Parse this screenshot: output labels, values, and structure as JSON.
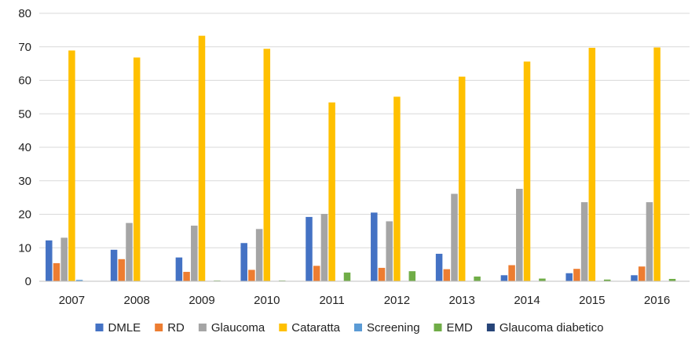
{
  "chart_data": {
    "type": "bar",
    "title": "",
    "xlabel": "",
    "ylabel": "",
    "ylim": [
      0,
      80
    ],
    "yticks": [
      0,
      10,
      20,
      30,
      40,
      50,
      60,
      70,
      80
    ],
    "grid": true,
    "legend_position": "bottom",
    "categories": [
      "2007",
      "2008",
      "2009",
      "2010",
      "2011",
      "2012",
      "2013",
      "2014",
      "2015",
      "2016"
    ],
    "series": [
      {
        "name": "DMLE",
        "color": "#4472C4",
        "values": [
          12.2,
          9.4,
          7.1,
          11.4,
          19.2,
          20.5,
          8.2,
          1.8,
          2.4,
          1.8
        ]
      },
      {
        "name": "RD",
        "color": "#ED7D31",
        "values": [
          5.4,
          6.6,
          2.8,
          3.4,
          4.6,
          4.0,
          3.6,
          4.8,
          3.7,
          4.4
        ]
      },
      {
        "name": "Glaucoma",
        "color": "#A5A5A5",
        "values": [
          13.0,
          17.4,
          16.6,
          15.6,
          20.1,
          17.9,
          26.1,
          27.6,
          23.6,
          23.6
        ]
      },
      {
        "name": "Cataratta",
        "color": "#FFC000",
        "values": [
          68.9,
          66.8,
          73.3,
          69.4,
          53.4,
          55.1,
          61.1,
          65.6,
          69.7,
          69.8
        ]
      },
      {
        "name": "Screening",
        "color": "#5B9BD5",
        "values": [
          0.4,
          0.0,
          0.0,
          0.0,
          0.0,
          0.0,
          0.0,
          0.0,
          0.0,
          0.0
        ]
      },
      {
        "name": "EMD",
        "color": "#70AD47",
        "values": [
          0.1,
          0.0,
          0.2,
          0.2,
          2.6,
          3.0,
          1.4,
          0.8,
          0.5,
          0.7
        ]
      },
      {
        "name": "Glaucoma diabetico",
        "color": "#264478",
        "values": [
          0.0,
          0.0,
          0.0,
          0.0,
          0.0,
          0.0,
          0.0,
          0.0,
          0.0,
          0.0
        ]
      }
    ]
  }
}
